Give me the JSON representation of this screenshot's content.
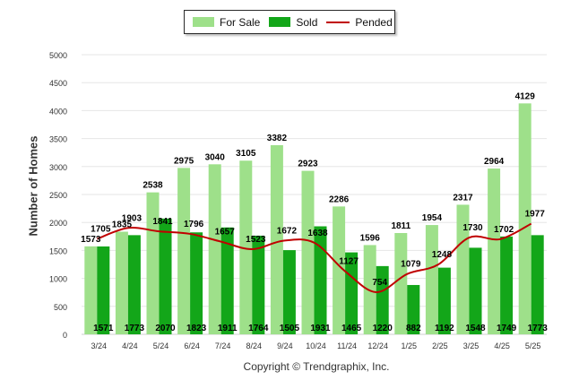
{
  "legend": {
    "for_sale_label": "For Sale",
    "sold_label": "Sold",
    "pended_label": "Pended"
  },
  "colors": {
    "for_sale": "#9ee08a",
    "sold": "#13a619",
    "pended": "#c00000",
    "grid": "#e6e6e6"
  },
  "footer": {
    "copyright": "Copyright © Trendgraphix, Inc."
  },
  "chart_data": {
    "type": "bar",
    "ylabel": "Number of Homes",
    "ylim": [
      0,
      5000
    ],
    "yticks": [
      0,
      500,
      1000,
      1500,
      2000,
      2500,
      3000,
      3500,
      4000,
      4500,
      5000
    ],
    "grid": true,
    "legend_position": "top-center",
    "categories": [
      "3/24",
      "4/24",
      "5/24",
      "6/24",
      "7/24",
      "8/24",
      "9/24",
      "10/24",
      "11/24",
      "12/24",
      "1/25",
      "2/25",
      "3/25",
      "4/25",
      "5/25"
    ],
    "series": [
      {
        "name": "For Sale",
        "kind": "bar",
        "values": [
          1573,
          1835,
          2538,
          2975,
          3040,
          3105,
          3382,
          2923,
          2286,
          1596,
          1811,
          1954,
          2317,
          2964,
          4129
        ]
      },
      {
        "name": "Sold",
        "kind": "bar",
        "values": [
          1571,
          1773,
          2070,
          1823,
          1911,
          1764,
          1505,
          1931,
          1465,
          1220,
          882,
          1192,
          1548,
          1749,
          1773
        ]
      },
      {
        "name": "Pended",
        "kind": "line",
        "values": [
          1705,
          1903,
          1841,
          1796,
          1657,
          1523,
          1672,
          1638,
          1127,
          754,
          1079,
          1248,
          1730,
          1702,
          1977
        ]
      }
    ]
  }
}
